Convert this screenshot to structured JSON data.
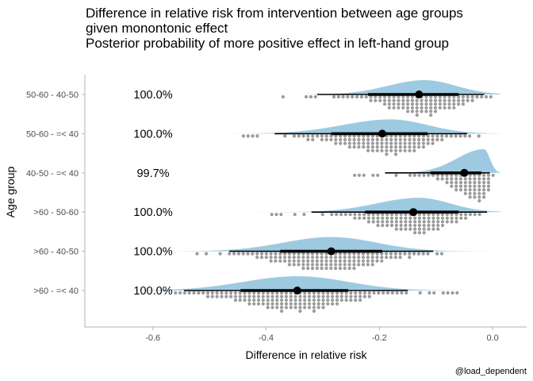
{
  "chart_data": {
    "type": "halfeye-dotplot",
    "title": [
      "Difference in relative risk from intervention between age groups",
      "given monontonic effect",
      "Posterior probability of more positive effect in left-hand group"
    ],
    "xlabel": "Difference in relative risk",
    "ylabel": "Age group",
    "caption": "@load_dependent",
    "xlim": [
      -0.72,
      0.06
    ],
    "x_ticks": [
      -0.6,
      -0.4,
      -0.2,
      0.0
    ],
    "x_tick_labels": [
      "-0.6",
      "-0.4",
      "-0.2",
      "0.0"
    ],
    "grid": false,
    "colors": {
      "density": "#9ecae1",
      "dots": "#9a9a9a",
      "interval": "#000000"
    },
    "groups": [
      {
        "label": "50-60 - 40-50",
        "prob": "100.0%",
        "median": -0.13,
        "ci66": [
          -0.22,
          -0.06
        ],
        "ci95": [
          -0.31,
          -0.015
        ],
        "min": -0.37,
        "max": 0.0,
        "mode": -0.12,
        "sd_left": 0.065,
        "sd_right": 0.055
      },
      {
        "label": "50-60 - =< 40",
        "prob": "100.0%",
        "median": -0.195,
        "ci66": [
          -0.285,
          -0.115
        ],
        "ci95": [
          -0.385,
          -0.045
        ],
        "min": -0.44,
        "max": -0.01,
        "mode": -0.18,
        "sd_left": 0.085,
        "sd_right": 0.065
      },
      {
        "label": "40-50 - =< 40",
        "prob": "99.7%",
        "median": -0.05,
        "ci66": [
          -0.11,
          -0.02
        ],
        "ci95": [
          -0.19,
          -0.005
        ],
        "min": -0.26,
        "max": 0.0,
        "mode": -0.015,
        "sd_left": 0.048,
        "sd_right": 0.01
      },
      {
        "label": ">60 - 50-60",
        "prob": "100.0%",
        "median": -0.14,
        "ci66": [
          -0.225,
          -0.06
        ],
        "ci95": [
          -0.32,
          -0.01
        ],
        "min": -0.39,
        "max": 0.0,
        "mode": -0.13,
        "sd_left": 0.075,
        "sd_right": 0.055
      },
      {
        "label": ">60 - 40-50",
        "prob": "100.0%",
        "median": -0.285,
        "ci66": [
          -0.375,
          -0.195
        ],
        "ci95": [
          -0.465,
          -0.105
        ],
        "min": -0.53,
        "max": -0.08,
        "mode": -0.285,
        "sd_left": 0.085,
        "sd_right": 0.08
      },
      {
        "label": ">60 - =< 40",
        "prob": "100.0%",
        "median": -0.345,
        "ci66": [
          -0.445,
          -0.255
        ],
        "ci95": [
          -0.545,
          -0.15
        ],
        "min": -0.56,
        "max": -0.06,
        "mode": -0.345,
        "sd_left": 0.095,
        "sd_right": 0.09
      }
    ]
  }
}
